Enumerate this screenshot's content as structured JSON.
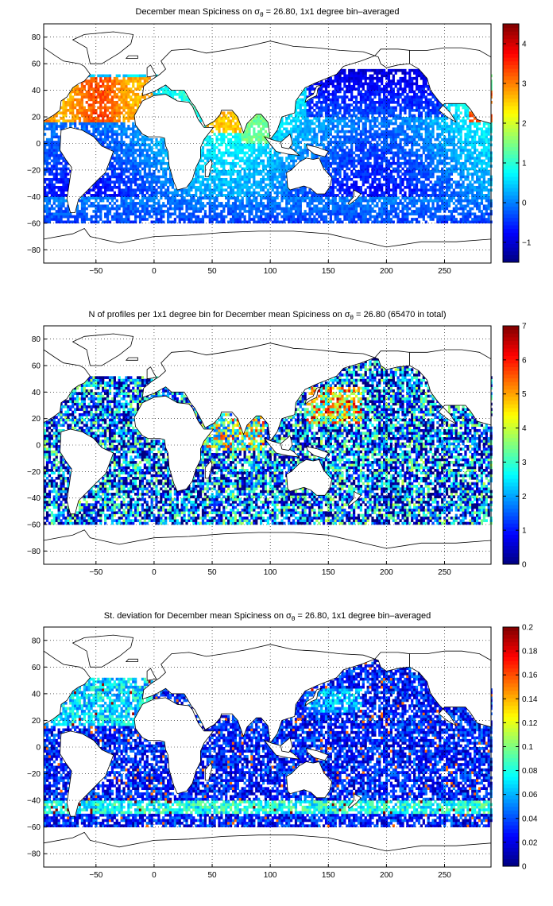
{
  "chart_data": [
    {
      "type": "heatmap",
      "title_prefix": "December mean Spiciness on ",
      "title_sigma": "σ",
      "title_subscript": "θ",
      "title_suffix": " = 26.80, 1x1 degree bin–averaged",
      "xlim": [
        -95,
        290
      ],
      "ylim": [
        -90,
        90
      ],
      "xticks": [
        -50,
        0,
        50,
        100,
        150,
        200,
        250
      ],
      "yticks": [
        -80,
        -60,
        -40,
        -20,
        0,
        20,
        40,
        60,
        80
      ],
      "grid": true,
      "colormap": "jet",
      "clim": [
        -1.5,
        4.5
      ],
      "colorbar_ticks": [
        -1,
        0,
        1,
        2,
        3,
        4
      ]
    },
    {
      "type": "heatmap",
      "title_prefix": "N of profiles per 1x1 degree bin for December mean Spiciness on ",
      "title_sigma": "σ",
      "title_subscript": "θ",
      "title_suffix": " = 26.80 (65470 in total)",
      "xlim": [
        -95,
        290
      ],
      "ylim": [
        -90,
        90
      ],
      "xticks": [
        -50,
        0,
        50,
        100,
        150,
        200,
        250
      ],
      "yticks": [
        -80,
        -60,
        -40,
        -20,
        0,
        20,
        40,
        60,
        80
      ],
      "grid": true,
      "colormap": "jet",
      "clim": [
        0,
        7
      ],
      "colorbar_ticks": [
        0,
        1,
        2,
        3,
        4,
        5,
        6,
        7
      ]
    },
    {
      "type": "heatmap",
      "title_prefix": "St. deviation for December mean Spiciness on ",
      "title_sigma": "σ",
      "title_subscript": "θ",
      "title_suffix": " = 26.80, 1x1 degree bin–averaged",
      "xlim": [
        -95,
        290
      ],
      "ylim": [
        -90,
        90
      ],
      "xticks": [
        -50,
        0,
        50,
        100,
        150,
        200,
        250
      ],
      "yticks": [
        -80,
        -60,
        -40,
        -20,
        0,
        20,
        40,
        60,
        80
      ],
      "grid": true,
      "colormap": "jet",
      "clim": [
        0,
        0.2
      ],
      "colorbar_ticks": [
        0,
        0.02,
        0.04,
        0.06,
        0.08,
        0.1,
        0.12,
        0.14,
        0.16,
        0.18,
        0.2
      ]
    }
  ]
}
